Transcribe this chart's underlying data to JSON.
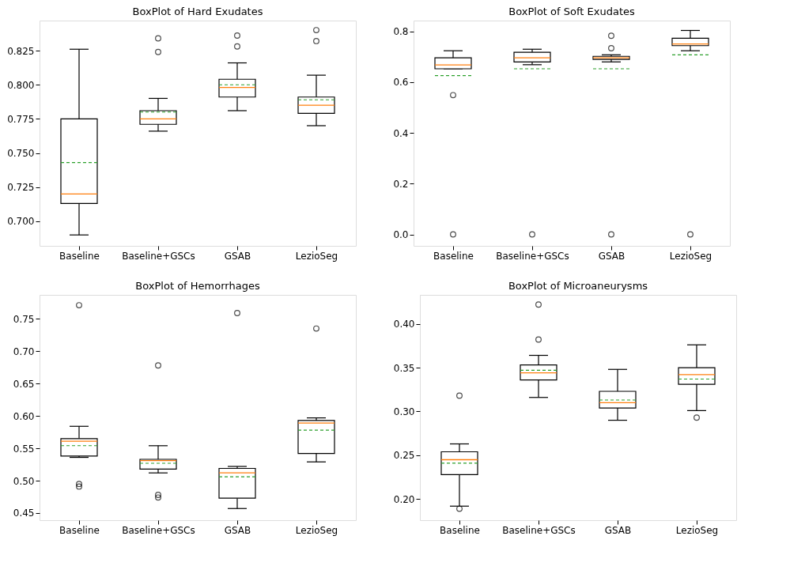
{
  "chart_data": [
    {
      "type": "box",
      "title": "BoxPlot of Hard Exudates",
      "categories": [
        "Baseline",
        "Baseline+GSCs",
        "GSAB",
        "LezioSeg"
      ],
      "ylim": [
        0.682,
        0.847
      ],
      "yticks": [
        {
          "value": 0.7,
          "label": "0.700"
        },
        {
          "value": 0.725,
          "label": "0.725"
        },
        {
          "value": 0.75,
          "label": "0.750"
        },
        {
          "value": 0.775,
          "label": "0.775"
        },
        {
          "value": 0.8,
          "label": "0.800"
        },
        {
          "value": 0.825,
          "label": "0.825"
        }
      ],
      "boxes": [
        {
          "low": 0.69,
          "q1": 0.713,
          "median": 0.72,
          "q3": 0.775,
          "high": 0.826,
          "mean": 0.743
        },
        {
          "low": 0.766,
          "q1": 0.771,
          "median": 0.775,
          "q3": 0.781,
          "high": 0.79,
          "mean": 0.78,
          "outliers": [
            0.834,
            0.824
          ]
        },
        {
          "low": 0.781,
          "q1": 0.791,
          "median": 0.798,
          "q3": 0.804,
          "high": 0.816,
          "mean": 0.8,
          "outliers": [
            0.836,
            0.828
          ]
        },
        {
          "low": 0.77,
          "q1": 0.779,
          "median": 0.785,
          "q3": 0.791,
          "high": 0.807,
          "mean": 0.789,
          "outliers": [
            0.84,
            0.832
          ]
        }
      ]
    },
    {
      "type": "box",
      "title": "BoxPlot of Soft Exudates",
      "categories": [
        "Baseline",
        "Baseline+GSCs",
        "GSAB",
        "LezioSeg"
      ],
      "ylim": [
        -0.045,
        0.843
      ],
      "yticks": [
        {
          "value": 0,
          "label": "0.0"
        },
        {
          "value": 0.2,
          "label": "0.2"
        },
        {
          "value": 0.4,
          "label": "0.4"
        },
        {
          "value": 0.6,
          "label": "0.6"
        },
        {
          "value": 0.8,
          "label": "0.8"
        }
      ],
      "boxes": [
        {
          "low": 0.653,
          "q1": 0.653,
          "median": 0.668,
          "q3": 0.696,
          "high": 0.724,
          "mean": 0.626,
          "outliers": [
            0.549,
            0.0
          ]
        },
        {
          "low": 0.669,
          "q1": 0.68,
          "median": 0.696,
          "q3": 0.718,
          "high": 0.73,
          "mean": 0.653,
          "outliers": [
            0.0
          ]
        },
        {
          "low": 0.68,
          "q1": 0.69,
          "median": 0.696,
          "q3": 0.702,
          "high": 0.708,
          "mean": 0.653,
          "outliers": [
            0.783,
            0.734,
            0.0
          ]
        },
        {
          "low": 0.724,
          "q1": 0.744,
          "median": 0.751,
          "q3": 0.773,
          "high": 0.804,
          "mean": 0.708,
          "outliers": [
            0.0
          ]
        }
      ]
    },
    {
      "type": "box",
      "title": "BoxPlot of Hemorrhages",
      "categories": [
        "Baseline",
        "Baseline+GSCs",
        "GSAB",
        "LezioSeg"
      ],
      "ylim": [
        0.439,
        0.787
      ],
      "yticks": [
        {
          "value": 0.45,
          "label": "0.45"
        },
        {
          "value": 0.5,
          "label": "0.50"
        },
        {
          "value": 0.55,
          "label": "0.55"
        },
        {
          "value": 0.6,
          "label": "0.60"
        },
        {
          "value": 0.65,
          "label": "0.65"
        },
        {
          "value": 0.7,
          "label": "0.70"
        },
        {
          "value": 0.75,
          "label": "0.75"
        }
      ],
      "boxes": [
        {
          "low": 0.536,
          "q1": 0.538,
          "median": 0.561,
          "q3": 0.565,
          "high": 0.584,
          "mean": 0.554,
          "outliers": [
            0.771,
            0.495,
            0.491
          ]
        },
        {
          "low": 0.512,
          "q1": 0.518,
          "median": 0.531,
          "q3": 0.533,
          "high": 0.554,
          "mean": 0.527,
          "outliers": [
            0.678,
            0.478,
            0.474
          ]
        },
        {
          "low": 0.457,
          "q1": 0.473,
          "median": 0.512,
          "q3": 0.519,
          "high": 0.522,
          "mean": 0.506,
          "outliers": [
            0.759
          ]
        },
        {
          "low": 0.529,
          "q1": 0.542,
          "median": 0.589,
          "q3": 0.593,
          "high": 0.597,
          "mean": 0.578,
          "outliers": [
            0.735
          ]
        }
      ]
    },
    {
      "type": "box",
      "title": "BoxPlot of Microaneurysms",
      "categories": [
        "Baseline",
        "Baseline+GSCs",
        "GSAB",
        "LezioSeg"
      ],
      "ylim": [
        0.176,
        0.433
      ],
      "yticks": [
        {
          "value": 0.2,
          "label": "0.20"
        },
        {
          "value": 0.25,
          "label": "0.25"
        },
        {
          "value": 0.3,
          "label": "0.30"
        },
        {
          "value": 0.35,
          "label": "0.35"
        },
        {
          "value": 0.4,
          "label": "0.40"
        }
      ],
      "boxes": [
        {
          "low": 0.192,
          "q1": 0.228,
          "median": 0.245,
          "q3": 0.254,
          "high": 0.263,
          "mean": 0.241,
          "outliers": [
            0.318,
            0.189
          ]
        },
        {
          "low": 0.316,
          "q1": 0.336,
          "median": 0.344,
          "q3": 0.353,
          "high": 0.364,
          "mean": 0.347,
          "outliers": [
            0.422,
            0.382
          ]
        },
        {
          "low": 0.29,
          "q1": 0.304,
          "median": 0.31,
          "q3": 0.323,
          "high": 0.348,
          "mean": 0.313
        },
        {
          "low": 0.301,
          "q1": 0.331,
          "median": 0.342,
          "q3": 0.35,
          "high": 0.376,
          "mean": 0.337,
          "outliers": [
            0.293
          ]
        }
      ]
    }
  ]
}
